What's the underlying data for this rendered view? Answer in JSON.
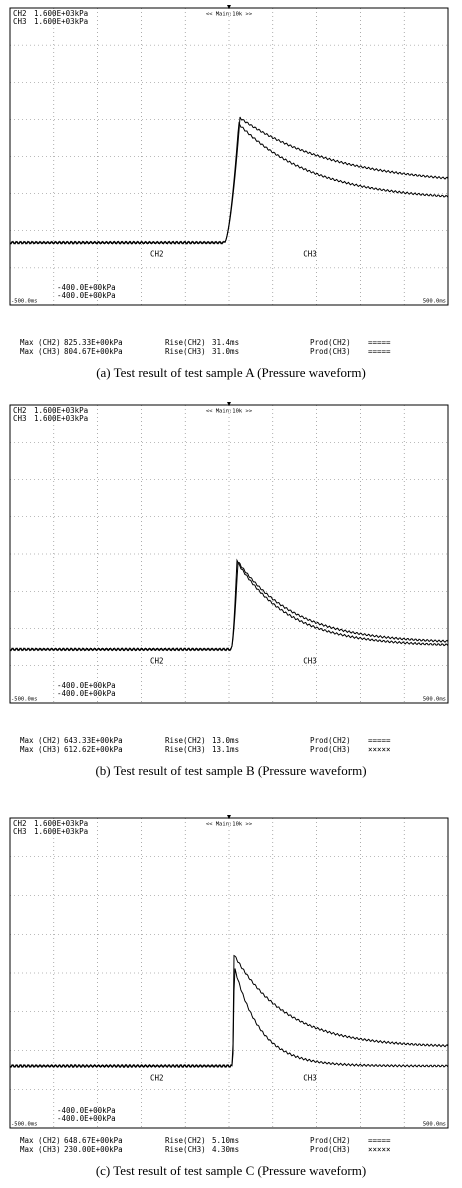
{
  "panels": [
    {
      "scope": {
        "ch2_label": "CH2",
        "ch2_scale": "1.600E+03kPa",
        "ch3_label": "CH3",
        "ch3_scale": "1.600E+03kPa",
        "timebase": "<< Main:10k >>",
        "ch2_offset": "-400.0E+00kPa",
        "ch3_offset": "-400.0E+00kPa",
        "t_start": "-500.0ms",
        "t_end": "500.0ms",
        "ch2_marker": "CH2",
        "ch3_marker": "CH3"
      },
      "results": [
        [
          "Max (CH2)",
          "825.33E+00kPa",
          "Rise(CH2)",
          "31.4ms",
          "Prod(CH2)",
          "====="
        ],
        [
          "Max (CH3)",
          "804.67E+00kPa",
          "Rise(CH3)",
          "31.0ms",
          "Prod(CH3)",
          "====="
        ]
      ],
      "caption": "(a)  Test result of test sample A (Pressure waveform)"
    },
    {
      "scope": {
        "ch2_label": "CH2",
        "ch2_scale": "1.600E+03kPa",
        "ch3_label": "CH3",
        "ch3_scale": "1.600E+03kPa",
        "timebase": "<< Main:10k >>",
        "ch2_offset": "-400.0E+00kPa",
        "ch3_offset": "-400.0E+00kPa",
        "t_start": "-500.0ms",
        "t_end": "500.0ms",
        "ch2_marker": "CH2",
        "ch3_marker": "CH3"
      },
      "results": [
        [
          "Max (CH2)",
          "643.33E+00kPa",
          "Rise(CH2)",
          "13.0ms",
          "Prod(CH2)",
          "====="
        ],
        [
          "Max (CH3)",
          "612.62E+00kPa",
          "Rise(CH3)",
          "13.1ms",
          "Prod(CH3)",
          "×××××"
        ]
      ],
      "caption": "(b)  Test result of test sample B (Pressure waveform)"
    },
    {
      "scope": {
        "ch2_label": "CH2",
        "ch2_scale": "1.600E+03kPa",
        "ch3_label": "CH3",
        "ch3_scale": "1.600E+03kPa",
        "timebase": "<< Main:10k >>",
        "ch2_offset": "-400.0E+00kPa",
        "ch3_offset": "-400.0E+00kPa",
        "t_start": "-500.0ms",
        "t_end": "500.0ms",
        "ch2_marker": "CH2",
        "ch3_marker": "CH3"
      },
      "results": [
        [
          "Max (CH2)",
          "648.67E+00kPa",
          "Rise(CH2)",
          "5.10ms",
          "Prod(CH2)",
          "====="
        ],
        [
          "Max (CH3)",
          "230.00E+00kPa",
          "Rise(CH3)",
          "4.30ms",
          "Prod(CH3)",
          "×××××"
        ]
      ],
      "caption": "(c)  Test result of test sample C (Pressure waveform)"
    }
  ]
}
